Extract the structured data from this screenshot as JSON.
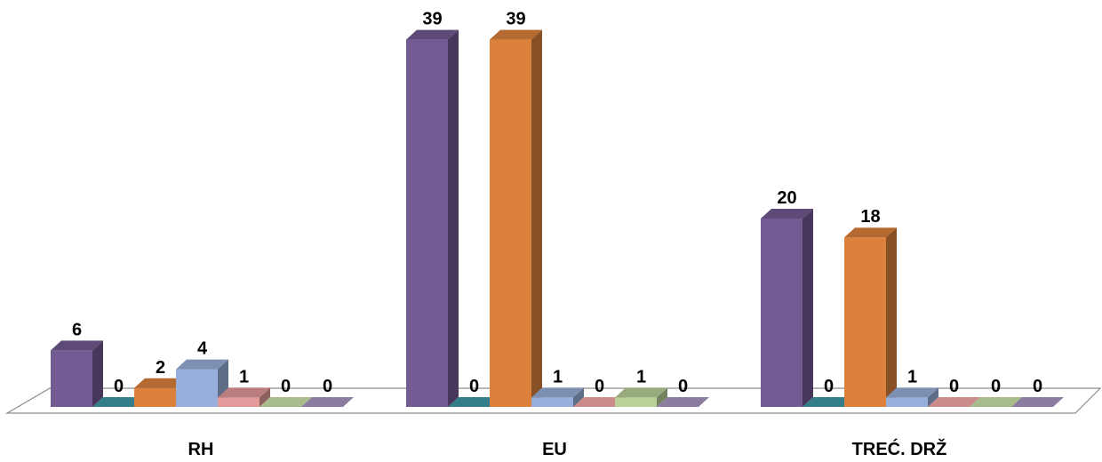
{
  "chart_data": {
    "type": "bar",
    "categories": [
      "RH",
      "EU",
      "TREĆ. DRŽ"
    ],
    "series": [
      {
        "color": "#725A92",
        "values": [
          6,
          39,
          20
        ]
      },
      {
        "color": "#3A8C9C",
        "values": [
          0,
          0,
          0
        ]
      },
      {
        "color": "#DC813C",
        "values": [
          2,
          39,
          18
        ]
      },
      {
        "color": "#97AFDA",
        "values": [
          4,
          1,
          1
        ]
      },
      {
        "color": "#E39A9A",
        "values": [
          1,
          0,
          0
        ]
      },
      {
        "color": "#B9D199",
        "values": [
          0,
          1,
          0
        ]
      },
      {
        "color": "#9C8BB2",
        "values": [
          0,
          0,
          0
        ]
      }
    ],
    "data_labels": true,
    "legend": "none",
    "grid": false,
    "three_d": true
  }
}
